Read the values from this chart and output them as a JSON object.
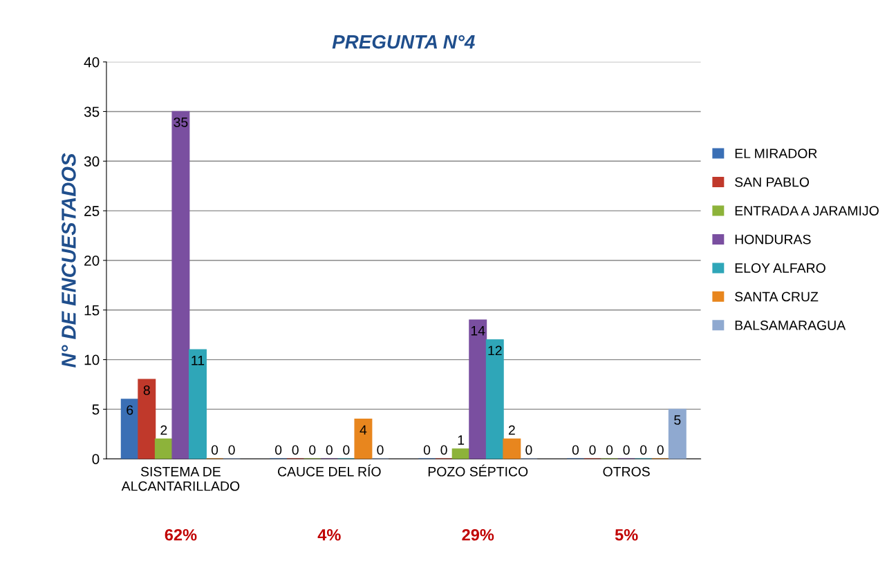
{
  "chart_data": {
    "type": "bar",
    "title": "PREGUNTA N°4",
    "ylabel": "N° DE ENCUESTADOS",
    "categories": [
      "SISTEMA DE\nALCANTARILLADO",
      "CAUCE DEL RÍO",
      "POZO SÉPTICO",
      "OTROS"
    ],
    "series": [
      {
        "name": "EL MIRADOR",
        "color": "#3a6fb5",
        "values": [
          6,
          0,
          0,
          0
        ]
      },
      {
        "name": "SAN PABLO",
        "color": "#c0392b",
        "values": [
          8,
          0,
          0,
          0
        ]
      },
      {
        "name": "ENTRADA A JARAMIJO",
        "color": "#8db33a",
        "values": [
          2,
          0,
          1,
          0
        ]
      },
      {
        "name": "HONDURAS",
        "color": "#7a4fa0",
        "values": [
          35,
          0,
          14,
          0
        ]
      },
      {
        "name": "ELOY ALFARO",
        "color": "#2fa6b8",
        "values": [
          11,
          0,
          12,
          0
        ]
      },
      {
        "name": "SANTA CRUZ",
        "color": "#e8861e",
        "values": [
          0,
          4,
          2,
          0
        ]
      },
      {
        "name": "BALSAMARAGUA",
        "color": "#8fa9d0",
        "values": [
          0,
          0,
          0,
          5
        ]
      }
    ],
    "ylim": [
      0,
      40
    ],
    "yticks": [
      0,
      5,
      10,
      15,
      20,
      25,
      30,
      35,
      40
    ],
    "grid": "y",
    "legend": "right",
    "data_labels": true,
    "annotations": [
      "62%",
      "4%",
      "29%",
      "5%"
    ]
  }
}
